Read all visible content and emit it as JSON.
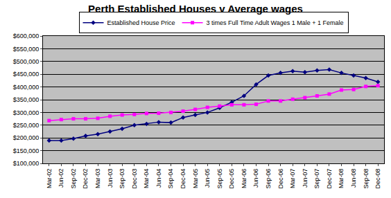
{
  "chart_data": {
    "type": "line",
    "title": "Perth Established Houses v Average wages",
    "categories": [
      "Mar-02",
      "Jun-02",
      "Sep-02",
      "Dec-02",
      "Mar-03",
      "Jun-03",
      "Sep-03",
      "Dec-03",
      "Mar-04",
      "Jun-04",
      "Sep-04",
      "Dec-04",
      "Mar-05",
      "Jun-05",
      "Sep-05",
      "Dec-05",
      "Mar-06",
      "Jun-06",
      "Sep-06",
      "Dec-06",
      "Mar-07",
      "Jun-07",
      "Sep-07",
      "Dec-07",
      "Mar-08",
      "Jun-08",
      "Sep-08",
      "Dec-08"
    ],
    "series": [
      {
        "name": "Established House Price",
        "color": "#000080",
        "marker": "diamond",
        "values": [
          190000,
          190000,
          197000,
          208000,
          215000,
          225000,
          236000,
          250000,
          255000,
          262000,
          260000,
          280000,
          290000,
          300000,
          318000,
          340000,
          365000,
          410000,
          445000,
          455000,
          462000,
          458000,
          465000,
          468000,
          455000,
          445000,
          435000,
          420000
        ]
      },
      {
        "name": "3 times Full Time Adult Wages 1 Male + 1 Female",
        "color": "#FF00FF",
        "marker": "square",
        "values": [
          268000,
          272000,
          275000,
          275000,
          277000,
          285000,
          290000,
          292000,
          296000,
          297000,
          300000,
          305000,
          312000,
          320000,
          325000,
          330000,
          330000,
          332000,
          345000,
          345000,
          352000,
          358000,
          365000,
          372000,
          388000,
          390000,
          402000,
          405000
        ]
      }
    ],
    "ylim": [
      100000,
      600000
    ],
    "yticks": [
      {
        "value": 100000,
        "label": "$100,000"
      },
      {
        "value": 150000,
        "label": "$150,000"
      },
      {
        "value": 200000,
        "label": "$200,000"
      },
      {
        "value": 250000,
        "label": "$250,000"
      },
      {
        "value": 300000,
        "label": "$300,000"
      },
      {
        "value": 350000,
        "label": "$350,000"
      },
      {
        "value": 400000,
        "label": "$400,000"
      },
      {
        "value": 450000,
        "label": "$450,000"
      },
      {
        "value": 500000,
        "label": "$500,000"
      },
      {
        "value": 550000,
        "label": "$550,000"
      },
      {
        "value": 600000,
        "label": "$600,000"
      }
    ],
    "grid": true,
    "legend": "top"
  }
}
